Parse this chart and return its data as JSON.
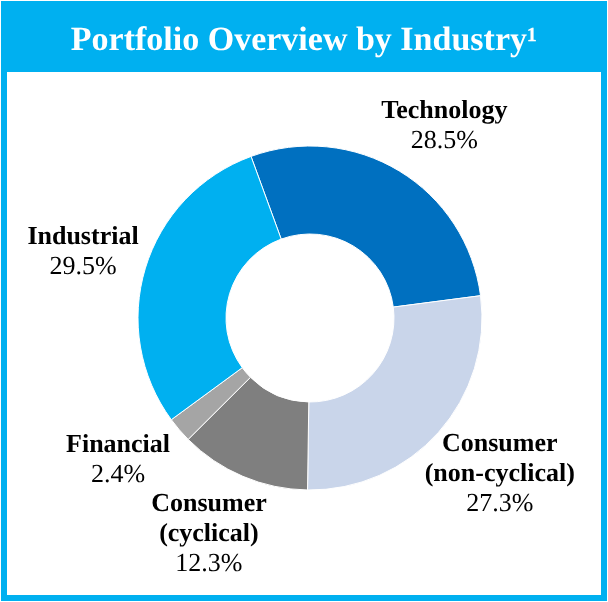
{
  "chart_data": {
    "type": "donut",
    "title": "Portfolio Overview by Industry¹",
    "categories": [
      "Technology",
      "Consumer (non-cyclical)",
      "Consumer (cyclical)",
      "Financial",
      "Industrial"
    ],
    "values": [
      28.5,
      27.3,
      12.3,
      2.4,
      29.5
    ],
    "value_labels": [
      "28.5%",
      "27.3%",
      "12.3%",
      "2.4%",
      "29.5%"
    ],
    "colors": [
      "#0070c0",
      "#c9d5ea",
      "#7f7f7f",
      "#a5a5a5",
      "#00b0f0"
    ]
  }
}
